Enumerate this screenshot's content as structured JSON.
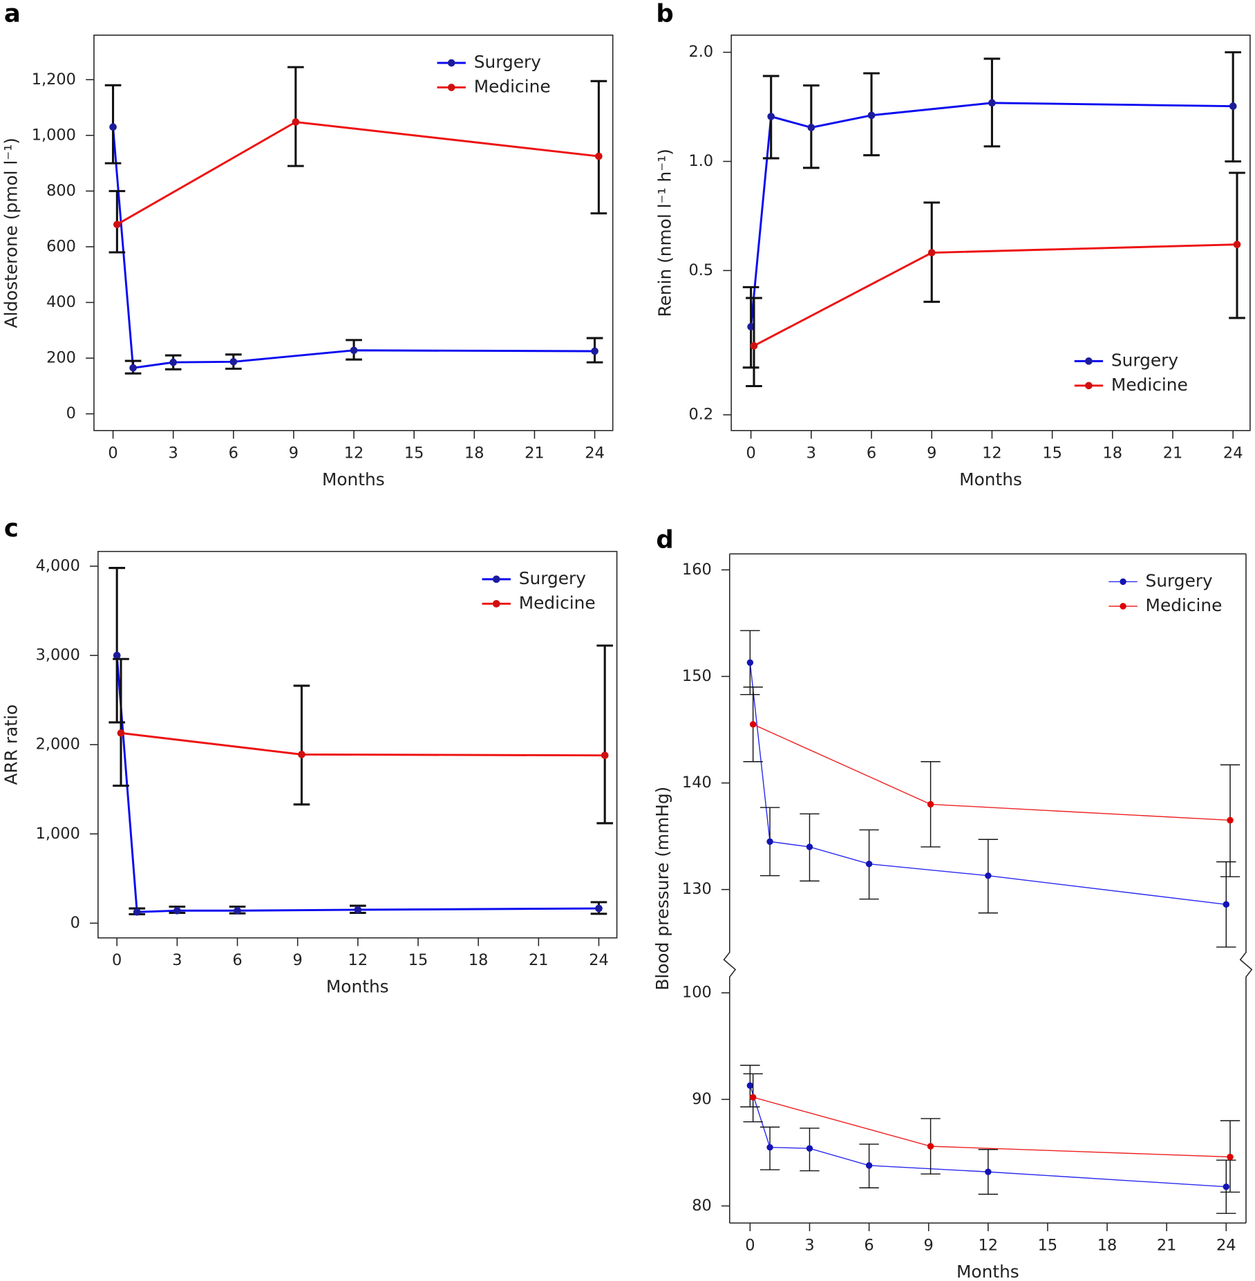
{
  "chart_data": [
    {
      "type": "line",
      "label": "a",
      "xlabel": "Months",
      "ylabel": "Aldosterone (pmol l⁻¹)",
      "xlim": [
        -0.95,
        24.9
      ],
      "xticks": [
        0,
        3,
        6,
        9,
        12,
        15,
        18,
        21,
        24
      ],
      "ylim": [
        -60,
        1360
      ],
      "yticks": [
        0,
        200,
        400,
        600,
        800,
        {
          "value": 1000,
          "label": "1,000"
        },
        {
          "value": 1200,
          "label": "1,200"
        }
      ],
      "legend": "upper right",
      "style": "bold",
      "series": [
        {
          "name": "Surgery",
          "color": "#0a0af0",
          "marker_color": "#1c1c9c",
          "x": [
            0,
            1,
            3,
            6,
            12,
            24
          ],
          "values": [
            1030,
            165,
            185,
            187,
            228,
            225
          ],
          "lower": [
            900,
            145,
            160,
            162,
            195,
            185
          ],
          "upper": [
            1180,
            190,
            210,
            213,
            265,
            272
          ]
        },
        {
          "name": "Medicine",
          "color": "#ee1111",
          "marker_color": "#d01010",
          "x": [
            0.2,
            9.1,
            24.2
          ],
          "values": [
            680,
            1048,
            925
          ],
          "lower": [
            580,
            890,
            720
          ],
          "upper": [
            800,
            1245,
            1195
          ]
        }
      ]
    },
    {
      "type": "line",
      "label": "b",
      "xlabel": "Months",
      "ylabel": "Renin (nmol l⁻¹ h⁻¹)",
      "xlim": [
        -0.98,
        24.85
      ],
      "xticks": [
        0,
        3,
        6,
        9,
        12,
        15,
        18,
        21,
        24
      ],
      "yscale": "log",
      "ylim": [
        0.181,
        2.23
      ],
      "yticks": [
        0.2,
        0.5,
        {
          "value": 1,
          "label": "1.0"
        },
        {
          "value": 2,
          "label": "2.0"
        }
      ],
      "legend": "lower right",
      "style": "bold",
      "series": [
        {
          "name": "Surgery",
          "color": "#0a0af0",
          "marker_color": "#1c1c9c",
          "x": [
            0,
            1,
            3,
            6,
            12,
            24
          ],
          "values": [
            0.35,
            1.33,
            1.24,
            1.34,
            1.45,
            1.42
          ],
          "lower": [
            0.27,
            1.02,
            0.96,
            1.04,
            1.1,
            1.0
          ],
          "upper": [
            0.45,
            1.72,
            1.62,
            1.75,
            1.92,
            2.0
          ]
        },
        {
          "name": "Medicine",
          "color": "#ee1111",
          "marker_color": "#d01010",
          "x": [
            0.15,
            9,
            24.2
          ],
          "values": [
            0.31,
            0.56,
            0.59
          ],
          "lower": [
            0.24,
            0.41,
            0.37
          ],
          "upper": [
            0.42,
            0.77,
            0.93
          ]
        }
      ]
    },
    {
      "type": "line",
      "label": "c",
      "xlabel": "Months",
      "ylabel": "ARR ratio",
      "xlim": [
        -0.94,
        24.9
      ],
      "xticks": [
        0,
        3,
        6,
        9,
        12,
        15,
        18,
        21,
        24
      ],
      "ylim": [
        -165,
        4165
      ],
      "yticks": [
        0,
        {
          "value": 1000,
          "label": "1,000"
        },
        {
          "value": 2000,
          "label": "2,000"
        },
        {
          "value": 3000,
          "label": "3,000"
        },
        {
          "value": 4000,
          "label": "4,000"
        }
      ],
      "legend": "upper right",
      "style": "bold",
      "series": [
        {
          "name": "Surgery",
          "color": "#0a0af0",
          "marker_color": "#1c1c9c",
          "x": [
            0,
            1,
            3,
            6,
            12,
            24
          ],
          "values": [
            3000,
            125,
            140,
            140,
            150,
            165
          ],
          "lower": [
            2250,
            100,
            115,
            110,
            115,
            105
          ],
          "upper": [
            3980,
            165,
            185,
            185,
            195,
            235
          ]
        },
        {
          "name": "Medicine",
          "color": "#ee1111",
          "marker_color": "#d01010",
          "x": [
            0.2,
            9.2,
            24.3
          ],
          "values": [
            2130,
            1890,
            1880
          ],
          "lower": [
            1540,
            1330,
            1120
          ],
          "upper": [
            2960,
            2660,
            3110
          ]
        }
      ]
    },
    {
      "type": "line",
      "label": "d",
      "xlabel": "Months",
      "ylabel": "Blood pressure (mmHg)",
      "xlim": [
        -1.03,
        25.0
      ],
      "xticks": [
        0,
        3,
        6,
        9,
        12,
        15,
        18,
        21,
        24
      ],
      "ylim": [
        78.4,
        161.5
      ],
      "ybreak": [
        101.5,
        124.1
      ],
      "yticks": [
        80,
        90,
        100,
        130,
        140,
        150,
        160
      ],
      "legend": "upper right",
      "style": "thin",
      "series": [
        {
          "name": "Surgery",
          "color": "#2a2af0",
          "marker_color": "#1414b4",
          "x": [
            0,
            1,
            3,
            6,
            12,
            24
          ],
          "values": [
            151.3,
            134.5,
            134.0,
            132.4,
            131.3,
            128.6
          ],
          "lower": [
            148.3,
            131.3,
            130.8,
            129.1,
            127.8,
            124.6
          ],
          "upper": [
            154.3,
            137.7,
            137.1,
            135.6,
            134.7,
            132.6
          ],
          "diastolic_values": [
            91.3,
            85.5,
            85.4,
            83.8,
            83.2,
            81.8
          ],
          "diastolic_lower": [
            89.3,
            83.4,
            83.3,
            81.7,
            81.1,
            79.3
          ],
          "diastolic_upper": [
            93.2,
            87.4,
            87.3,
            85.8,
            85.3,
            84.3
          ]
        },
        {
          "name": "Medicine",
          "color": "#ee2222",
          "marker_color": "#dd0000",
          "x": [
            0.15,
            9.1,
            24.2
          ],
          "values": [
            145.5,
            138.0,
            136.5
          ],
          "lower": [
            142.0,
            134.0,
            131.2
          ],
          "upper": [
            149.0,
            142.0,
            141.7
          ],
          "diastolic_values": [
            90.2,
            85.6,
            84.6
          ],
          "diastolic_lower": [
            87.9,
            83.0,
            81.3
          ],
          "diastolic_upper": [
            92.4,
            88.2,
            88.0
          ]
        }
      ]
    }
  ]
}
